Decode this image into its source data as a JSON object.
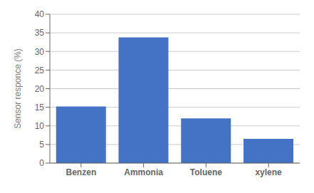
{
  "chart_data": {
    "type": "bar",
    "categories": [
      "Benzen",
      "Ammonia",
      "Toluene",
      "xylene"
    ],
    "values": [
      15.2,
      33.8,
      12.0,
      6.5
    ],
    "color": "#4472C4",
    "ylabel": "Sensor responce (%)",
    "ylim": [
      0,
      40
    ],
    "yticks": [
      0,
      5,
      10,
      15,
      20,
      25,
      30,
      35,
      40
    ],
    "grid": true
  }
}
